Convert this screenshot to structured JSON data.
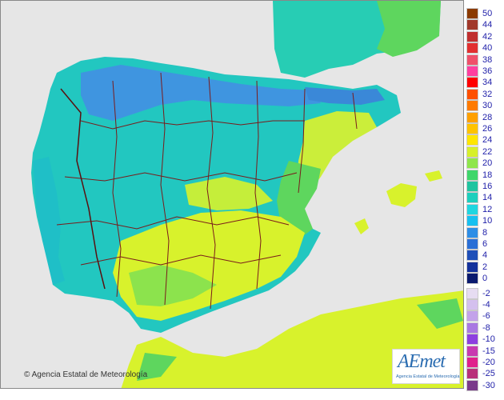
{
  "map": {
    "background": "#e6e6e6",
    "land_color_base": "#22c7c0",
    "warm_color": "#d8f22c",
    "green_color": "#5ed65e",
    "cold_color": "#3f95e0",
    "border_color": "#7a1b1b"
  },
  "copyright": "© Agencia Estatal de Meteorología",
  "logo": {
    "word": "AEmet",
    "subtitle": "Agencia Estatal de Meteorología"
  },
  "legend": {
    "positive": [
      {
        "label": "50",
        "color": "#8b3a00"
      },
      {
        "label": "44",
        "color": "#a1392b"
      },
      {
        "label": "42",
        "color": "#c0302f"
      },
      {
        "label": "40",
        "color": "#e23030"
      },
      {
        "label": "38",
        "color": "#f0506a"
      },
      {
        "label": "36",
        "color": "#ff3fa0"
      },
      {
        "label": "34",
        "color": "#ff0000"
      },
      {
        "label": "32",
        "color": "#ff5000"
      },
      {
        "label": "30",
        "color": "#ff7a00"
      },
      {
        "label": "28",
        "color": "#ffa000"
      },
      {
        "label": "26",
        "color": "#ffc300"
      },
      {
        "label": "24",
        "color": "#ffe600"
      },
      {
        "label": "22",
        "color": "#d7f02a"
      },
      {
        "label": "20",
        "color": "#8fe64c"
      },
      {
        "label": "18",
        "color": "#3fd66a"
      },
      {
        "label": "16",
        "color": "#20c4a0"
      },
      {
        "label": "14",
        "color": "#1ccfbd"
      },
      {
        "label": "12",
        "color": "#1fd6e0"
      },
      {
        "label": "10",
        "color": "#17c0f0"
      },
      {
        "label": "8",
        "color": "#2e8ee6"
      },
      {
        "label": "6",
        "color": "#2a6fd6"
      },
      {
        "label": "4",
        "color": "#1f4fb8"
      },
      {
        "label": "2",
        "color": "#14329c"
      },
      {
        "label": "0",
        "color": "#0a1a6e"
      }
    ],
    "negative": [
      {
        "label": "-2",
        "color": "#e6dcf2"
      },
      {
        "label": "-4",
        "color": "#d4c0ee"
      },
      {
        "label": "-6",
        "color": "#c3a2ea"
      },
      {
        "label": "-8",
        "color": "#a978e2"
      },
      {
        "label": "-10",
        "color": "#8d3fe0"
      },
      {
        "label": "-15",
        "color": "#c83ab0"
      },
      {
        "label": "-20",
        "color": "#e0208c"
      },
      {
        "label": "-25",
        "color": "#b8307a"
      },
      {
        "label": "-30",
        "color": "#7a3a8a"
      }
    ]
  }
}
